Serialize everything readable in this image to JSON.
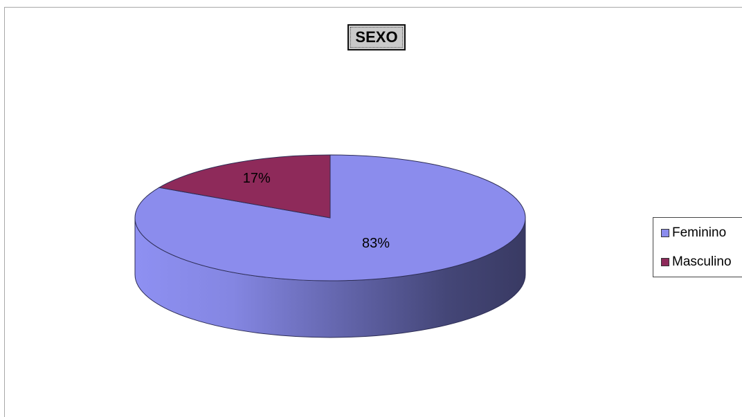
{
  "chart_data": {
    "type": "pie",
    "title": "SEXO",
    "categories": [
      "Feminino",
      "Masculino"
    ],
    "values": [
      83,
      17
    ],
    "labels": [
      "83%",
      "17%"
    ],
    "colors": [
      "#8b8ced",
      "#8e2a5a"
    ],
    "legend": "right",
    "three_d": true
  }
}
